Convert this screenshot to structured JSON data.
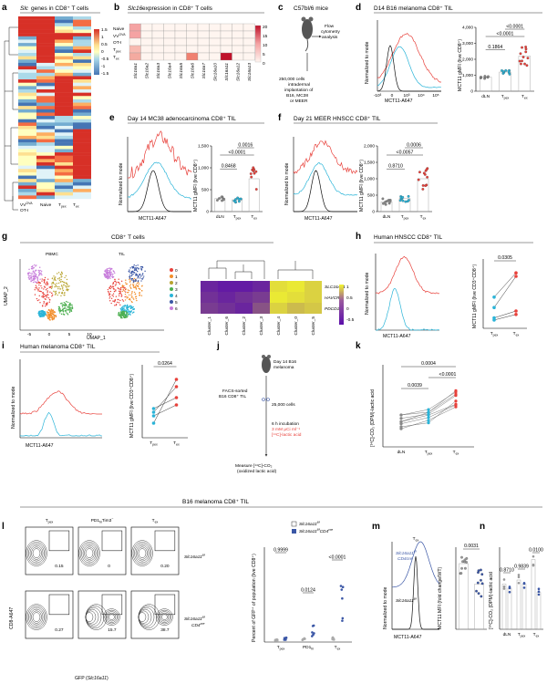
{
  "panels": {
    "a": {
      "letter": "a",
      "title_italic": "Slc",
      "title_rest": " genes in CD8⁺ T cells",
      "columns": [
        "VV",
        "Naive",
        "Tpex",
        "Tex"
      ],
      "col_sub": {
        "VV": "OVA",
        "VV2": "OT-I"
      },
      "colorbar": [
        "1.5",
        "1",
        "0.5",
        "0",
        "-0.5",
        "-1",
        "-1.5"
      ]
    },
    "b": {
      "letter": "b",
      "title_italic": "Slc16",
      "title_rest": " expression in CD8⁺ T cells",
      "rows": [
        "Naive",
        "VVOVA OT-I",
        "Tpex",
        "Tex"
      ],
      "row_labels": [
        "Naive",
        "VV",
        "OT-I",
        "T",
        "T"
      ],
      "row_subs": [
        "",
        "OVA",
        "",
        "pex",
        "ex"
      ],
      "genes": [
        "Slc16a1",
        "Slc16a2",
        "Slc16a3",
        "Slc16a4",
        "Slc16a5",
        "Slc16a6",
        "Slc16a7",
        "Slc16a10",
        "Slc16a11",
        "Slc16a12",
        "Slc16a13"
      ],
      "colorbar": [
        "20",
        "15",
        "10",
        "5",
        "0"
      ]
    },
    "c": {
      "letter": "c",
      "mouse": "C57bl/6 mice",
      "flow": "Flow",
      "flow2": "cytometry",
      "flow3": "analysis",
      "cells": "250,000 cells",
      "imp1": "intradermal",
      "imp2": "implantation of",
      "imp3": "B16, MC38",
      "imp4": "or MEER"
    },
    "d": {
      "letter": "d",
      "title": "D14 B16 melanoma CD8⁺ TIL",
      "xlabel": "MCT11-A647",
      "ylabel": "Normalized to mode",
      "ylabel2": "MCT11 gMFI (live CD8⁺)",
      "cats": [
        "dLN",
        "T",
        "T"
      ],
      "cat_sub": [
        "",
        "pex",
        "ex"
      ],
      "yticks": [
        "0",
        "1,000",
        "2,000",
        "3,000",
        "4,000"
      ],
      "pvals": [
        "<0.0001",
        "<0.0001",
        "0.1864"
      ],
      "xticks": [
        "-10³",
        "0",
        "10³",
        "10⁴",
        "10⁵"
      ]
    },
    "e": {
      "letter": "e",
      "title": "Day 14 MC38 adenocarcinoma CD8⁺ TIL",
      "xlabel": "MCT11-A647",
      "ylabel": "Normalized to mode",
      "ylabel2": "MCT11 gMFI (live CD8⁺)",
      "yticks": [
        "0",
        "500",
        "1,000",
        "1,500"
      ],
      "pvals": [
        "0.0016",
        "<0.0001",
        "0.8468"
      ]
    },
    "f": {
      "letter": "f",
      "title": "Day 21 MEER HNSCC CD8⁺ TIL",
      "xlabel": "MCT11-A647",
      "ylabel": "Normalized to mode",
      "ylabel2": "MCT11 gMFI (live CD8⁺)",
      "yticks": [
        "0",
        "500",
        "1,000",
        "1,500",
        "2,000"
      ],
      "pvals": [
        "0.0006",
        "<0.0057",
        "0.8710"
      ]
    },
    "g": {
      "letter": "g",
      "title": "CD8⁺ T cells",
      "pbmc": "PBMC",
      "til": "TIL",
      "xlab": "UMAP_1",
      "ylab": "UMAP_2",
      "legend": [
        "0",
        "1",
        "2",
        "3",
        "4",
        "5",
        "6"
      ],
      "genes": [
        "SLC16A11",
        "HAVCR2",
        "PDCD1"
      ],
      "clusters": [
        "Cluster_1",
        "Cluster_6",
        "Cluster_2",
        "Cluster_3",
        "Cluster_4",
        "Cluster_0",
        "Cluster_5"
      ],
      "colorbar": [
        "1",
        "0.5",
        "0",
        "-0.5"
      ],
      "ticks": [
        "-5",
        "0",
        "5",
        "10"
      ]
    },
    "h": {
      "letter": "h",
      "title": "Human HNSCC CD8⁺ TIL",
      "xlabel": "MCT11-A647",
      "ylabel": "Normalized to mode",
      "ylabel2": "MCT11 gMFI (live CD3⁺CD8⁺)",
      "pval": "0.0305"
    },
    "i": {
      "letter": "i",
      "title": "Human melanoma CD8⁺ TIL",
      "xlabel": "MCT11-A647",
      "ylabel": "Normalized to mode",
      "ylabel2": "MCT11 gMFI (live CD3⁺CD8⁺)",
      "pval": "0.0264"
    },
    "j": {
      "letter": "j",
      "mouse": "Day 14 B16",
      "mouse2": "melanoma",
      "sort1": "FACS-sorted",
      "sort2": "B16 CD8⁺ TIL",
      "cells": "25,000 cells",
      "inc1": "6 h incubation",
      "inc2": "3 mM μCi ml⁻¹",
      "inc3": "[¹⁴C]-lactic acid",
      "measure1": "Measure [¹⁴C]-CO₂",
      "measure2": "(oxidized lactic acid)"
    },
    "k": {
      "letter": "k",
      "ylabel": "[¹⁴C]-CO₂ (DPM)-lactic acid",
      "pvals": [
        "0.0004",
        "0.0039",
        "<0.0001"
      ]
    },
    "l": {
      "letter": "l",
      "title": "B16 melanoma CD8⁺ TIL",
      "cols": [
        "Tpex",
        "PD1hiTim3⁻",
        "Tex"
      ],
      "col_labels": [
        "T",
        "PD1",
        "Tim3",
        "T"
      ],
      "values_top": [
        "0.15",
        "0",
        "0.20"
      ],
      "values_bot": [
        "0.27",
        "15.7",
        "38.7"
      ],
      "row1": "Slc16a11",
      "row1_sup": "f/f",
      "row2": "Slc16a11",
      "row2_sup": "f/f",
      "row2b": "CD4",
      "row2b_sup": "cre",
      "xlabel": "GFP (Slc16a11)",
      "ylabel": "CD8-A647",
      "legend": [
        "Slc16a11f/f",
        "Slc16a11f/f CD4cre"
      ],
      "ylabel2": "Percent of GFP⁺ of population (live CD8⁺)",
      "pvals": [
        "0.9999",
        "0.0124",
        "<0.0001"
      ],
      "cats": [
        "T",
        "PD1",
        "T"
      ]
    },
    "m": {
      "letter": "m",
      "title": "Tex",
      "lab_a": "Slc16a11f/f CD4cre",
      "lab_b": "Slc16a11f/f",
      "xlabel": "MCT11-A647",
      "ylabel": "Normalized to mode",
      "ylabel2": "MCT11 MFI (fold change/WT)",
      "pval": "0.0031"
    },
    "n": {
      "letter": "n",
      "ylabel": "[¹⁴C]-CO₂ (DPM)-lactic acid",
      "pvals": [
        "0.8710",
        "0.9839",
        "0.0100"
      ],
      "cats": [
        "dLN",
        "T",
        "T"
      ]
    }
  },
  "colors": {
    "red": "#e8413b",
    "cyan": "#2ab4d8",
    "black": "#111111",
    "blue": "#3b57a6",
    "heat_red": "#d73027",
    "heat_blue": "#4575b4"
  }
}
